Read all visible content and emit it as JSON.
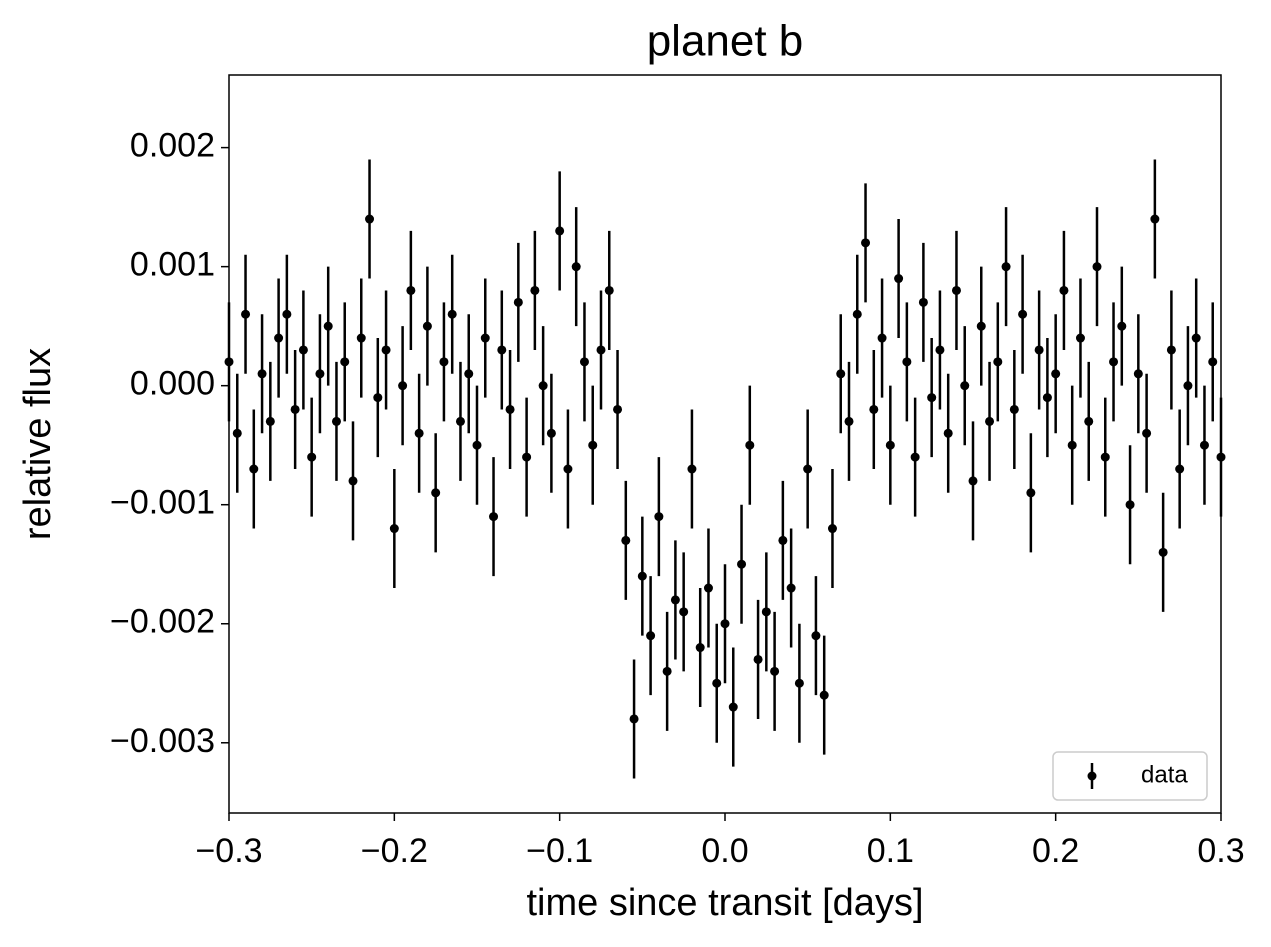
{
  "chart_data": {
    "type": "errorbar",
    "title": "planet b",
    "xlabel": "time since transit [days]",
    "ylabel": "relative flux",
    "xlim": [
      -0.3,
      0.3
    ],
    "xticks": [
      {
        "value": -0.3,
        "label": "−0.3"
      },
      {
        "value": -0.2,
        "label": "−0.2"
      },
      {
        "value": -0.1,
        "label": "−0.1"
      },
      {
        "value": 0,
        "label": "0.0"
      },
      0.1,
      0.2,
      0.3
    ],
    "ylim": [
      -0.00359,
      0.00261
    ],
    "yticks": [
      {
        "value": -0.003,
        "label": "−0.003"
      },
      {
        "value": -0.002,
        "label": "−0.002"
      },
      {
        "value": -0.001,
        "label": "−0.001"
      },
      {
        "value": 0,
        "label": "0.000"
      },
      0.001,
      0.002
    ],
    "legend": "lower right",
    "series": [
      {
        "name": "data",
        "color": "#000000",
        "yerr": 0.0005,
        "x": [
          -0.3,
          -0.295,
          -0.29,
          -0.285,
          -0.28,
          -0.275,
          -0.27,
          -0.265,
          -0.26,
          -0.255,
          -0.25,
          -0.245,
          -0.24,
          -0.235,
          -0.23,
          -0.225,
          -0.22,
          -0.215,
          -0.21,
          -0.205,
          -0.2,
          -0.195,
          -0.19,
          -0.185,
          -0.18,
          -0.175,
          -0.17,
          -0.165,
          -0.16,
          -0.155,
          -0.15,
          -0.145,
          -0.14,
          -0.135,
          -0.13,
          -0.125,
          -0.12,
          -0.115,
          -0.11,
          -0.105,
          -0.1,
          -0.095,
          -0.09,
          -0.085,
          -0.08,
          -0.075,
          -0.07,
          -0.065,
          -0.06,
          -0.055,
          -0.05,
          -0.045,
          -0.04,
          -0.035,
          -0.03,
          -0.025,
          -0.02,
          -0.015,
          -0.01,
          -0.005,
          0,
          0.005,
          0.01,
          0.015,
          0.02,
          0.025,
          0.03,
          0.035,
          0.04,
          0.045,
          0.05,
          0.055,
          0.06,
          0.065,
          0.07,
          0.075,
          0.08,
          0.085,
          0.09,
          0.095,
          0.1,
          0.105,
          0.11,
          0.115,
          0.12,
          0.125,
          0.13,
          0.135,
          0.14,
          0.145,
          0.15,
          0.155,
          0.16,
          0.165,
          0.17,
          0.175,
          0.18,
          0.185,
          0.19,
          0.195,
          0.2,
          0.205,
          0.21,
          0.215,
          0.22,
          0.225,
          0.23,
          0.235,
          0.24,
          0.245,
          0.25,
          0.255,
          0.26,
          0.265,
          0.27,
          0.275,
          0.28,
          0.285,
          0.29,
          0.295,
          0.3
        ],
        "values": [
          0.0002,
          -0.0004,
          0.0006,
          -0.0007,
          0.0001,
          -0.0003,
          0.0004,
          0.0006,
          -0.0002,
          0.0003,
          -0.0006,
          0.0001,
          0.0005,
          -0.0003,
          0.0002,
          -0.0008,
          0.0004,
          0.0014,
          -0.0001,
          0.0003,
          -0.0012,
          0.0,
          0.0008,
          -0.0004,
          0.0005,
          -0.0009,
          0.0002,
          0.0006,
          -0.0003,
          0.0001,
          -0.0005,
          0.0004,
          -0.0011,
          0.0003,
          -0.0002,
          0.0007,
          -0.0006,
          0.0008,
          0.0,
          -0.0004,
          0.0013,
          -0.0007,
          0.001,
          0.0002,
          -0.0005,
          0.0003,
          0.0008,
          -0.0002,
          -0.0013,
          -0.0028,
          -0.0016,
          -0.0021,
          -0.0011,
          -0.0024,
          -0.0018,
          -0.0019,
          -0.0007,
          -0.0022,
          -0.0017,
          -0.0025,
          -0.002,
          -0.0027,
          -0.0015,
          -0.0005,
          -0.0023,
          -0.0019,
          -0.0024,
          -0.0013,
          -0.0017,
          -0.0025,
          -0.0007,
          -0.0021,
          -0.0026,
          -0.0012,
          0.0001,
          -0.0003,
          0.0006,
          0.0012,
          -0.0002,
          0.0004,
          -0.0005,
          0.0009,
          0.0002,
          -0.0006,
          0.0007,
          -0.0001,
          0.0003,
          -0.0004,
          0.0008,
          0.0,
          -0.0008,
          0.0005,
          -0.0003,
          0.0002,
          0.001,
          -0.0002,
          0.0006,
          -0.0009,
          0.0003,
          -0.0001,
          0.0001,
          0.0008,
          -0.0005,
          0.0004,
          -0.0003,
          0.001,
          -0.0006,
          0.0002,
          0.0005,
          -0.001,
          0.0001,
          -0.0004,
          0.0014,
          -0.0014,
          0.0003,
          -0.0007,
          0.0,
          0.0004,
          -0.0005,
          0.0002,
          -0.0006
        ]
      }
    ]
  }
}
